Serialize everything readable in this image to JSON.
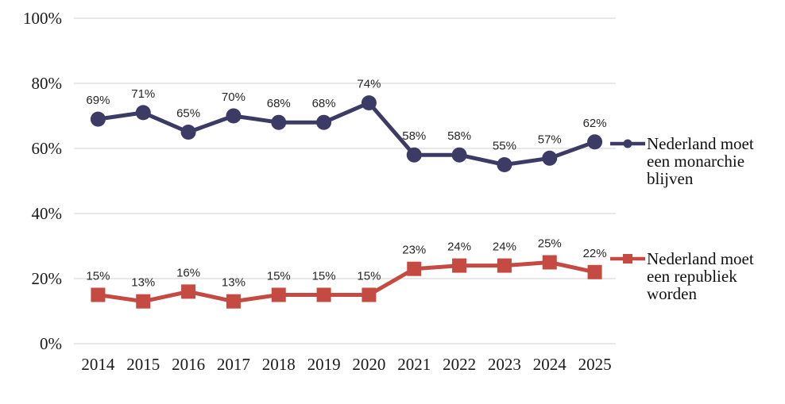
{
  "chart_data": {
    "type": "line",
    "title": "",
    "xlabel": "",
    "ylabel": "",
    "x_categories": [
      "2014",
      "2015",
      "2016",
      "2017",
      "2018",
      "2019",
      "2020",
      "2021",
      "2022",
      "2023",
      "2024",
      "2025"
    ],
    "ylim": [
      0,
      100
    ],
    "yticks": [
      {
        "value": 0,
        "label": "0%"
      },
      {
        "value": 20,
        "label": "20%"
      },
      {
        "value": 40,
        "label": "40%"
      },
      {
        "value": 60,
        "label": "60%"
      },
      {
        "value": 80,
        "label": "80%"
      },
      {
        "value": 100,
        "label": "100%"
      }
    ],
    "grid": true,
    "legend_position": "right",
    "series": [
      {
        "name": "Nederland moet een monarchie blijven",
        "legend_lines": [
          "Nederland moet",
          "een monarchie",
          "blijven"
        ],
        "marker": "circle",
        "color": "#3B3B66",
        "values": [
          69,
          71,
          65,
          70,
          68,
          68,
          74,
          58,
          58,
          55,
          57,
          62
        ],
        "labels": [
          "69%",
          "71%",
          "65%",
          "70%",
          "68%",
          "68%",
          "74%",
          "58%",
          "58%",
          "55%",
          "57%",
          "62%"
        ]
      },
      {
        "name": "Nederland moet een republiek worden",
        "legend_lines": [
          "Nederland moet",
          "een republiek",
          "worden"
        ],
        "marker": "square",
        "color": "#C44A42",
        "values": [
          15,
          13,
          16,
          13,
          15,
          15,
          15,
          23,
          24,
          24,
          25,
          22
        ],
        "labels": [
          "15%",
          "13%",
          "16%",
          "13%",
          "15%",
          "15%",
          "15%",
          "23%",
          "24%",
          "24%",
          "25%",
          "22%"
        ]
      }
    ],
    "colors": {
      "grid": "#D9D9D9",
      "axis_text": "#1a1a1a",
      "data_label_text": "#262626",
      "background": "#ffffff"
    }
  }
}
